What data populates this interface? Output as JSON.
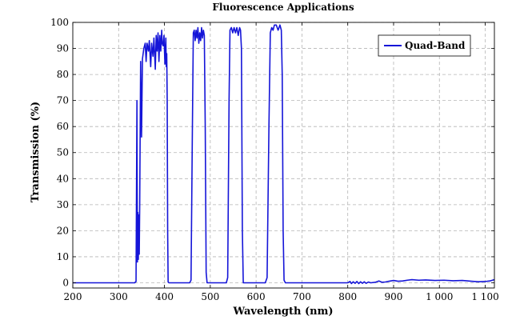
{
  "chart_data": {
    "type": "line",
    "title": "Fluorescence Applications",
    "xlabel": "Wavelength (nm)",
    "ylabel": "Transmission (%)",
    "xlim": [
      200,
      1120
    ],
    "ylim": [
      -2,
      100
    ],
    "x_ticks": [
      200,
      300,
      400,
      500,
      600,
      700,
      800,
      900,
      1000,
      1100
    ],
    "x_tick_labels": [
      "200",
      "300",
      "400",
      "500",
      "600",
      "700",
      "800",
      "900",
      "1 000",
      "1 100"
    ],
    "y_ticks": [
      0,
      10,
      20,
      30,
      40,
      50,
      60,
      70,
      80,
      90,
      100
    ],
    "y_tick_labels": [
      "0",
      "10",
      "20",
      "30",
      "40",
      "50",
      "60",
      "70",
      "80",
      "90",
      "100"
    ],
    "grid": true,
    "legend_position": "top-right",
    "series": [
      {
        "name": "Quad-Band",
        "color": "#1515d8",
        "points": [
          [
            200,
            0
          ],
          [
            300,
            0
          ],
          [
            335,
            0
          ],
          [
            338,
            0.5
          ],
          [
            340,
            70
          ],
          [
            341,
            8
          ],
          [
            342,
            27
          ],
          [
            343,
            9
          ],
          [
            344,
            26
          ],
          [
            345,
            11
          ],
          [
            346,
            30
          ],
          [
            348,
            85
          ],
          [
            350,
            56
          ],
          [
            352,
            86
          ],
          [
            355,
            90
          ],
          [
            358,
            92
          ],
          [
            360,
            85
          ],
          [
            362,
            92
          ],
          [
            365,
            89
          ],
          [
            367,
            93
          ],
          [
            370,
            83
          ],
          [
            372,
            92
          ],
          [
            375,
            87
          ],
          [
            377,
            94
          ],
          [
            380,
            82
          ],
          [
            382,
            95
          ],
          [
            384,
            89
          ],
          [
            386,
            96
          ],
          [
            388,
            85
          ],
          [
            390,
            95
          ],
          [
            392,
            89
          ],
          [
            394,
            97
          ],
          [
            395,
            92
          ],
          [
            397,
            91
          ],
          [
            399,
            95
          ],
          [
            401,
            84
          ],
          [
            403,
            94
          ],
          [
            404,
            83
          ],
          [
            405,
            88
          ],
          [
            406,
            70
          ],
          [
            407,
            20
          ],
          [
            408,
            0.3
          ],
          [
            410,
            0
          ],
          [
            455,
            0
          ],
          [
            458,
            1
          ],
          [
            461,
            60
          ],
          [
            463,
            96
          ],
          [
            465,
            97
          ],
          [
            467,
            93
          ],
          [
            469,
            97
          ],
          [
            471,
            94
          ],
          [
            473,
            98
          ],
          [
            475,
            92
          ],
          [
            477,
            96
          ],
          [
            479,
            93
          ],
          [
            481,
            98
          ],
          [
            483,
            94
          ],
          [
            485,
            97
          ],
          [
            487,
            95
          ],
          [
            489,
            60
          ],
          [
            491,
            4
          ],
          [
            493,
            0
          ],
          [
            535,
            0
          ],
          [
            538,
            2
          ],
          [
            541,
            70
          ],
          [
            543,
            97
          ],
          [
            546,
            98
          ],
          [
            549,
            96
          ],
          [
            552,
            98
          ],
          [
            555,
            96
          ],
          [
            558,
            98
          ],
          [
            561,
            95
          ],
          [
            564,
            98
          ],
          [
            566,
            97
          ],
          [
            568,
            90
          ],
          [
            570,
            20
          ],
          [
            572,
            0
          ],
          [
            620,
            0
          ],
          [
            624,
            2
          ],
          [
            628,
            60
          ],
          [
            631,
            96
          ],
          [
            634,
            98
          ],
          [
            637,
            97
          ],
          [
            640,
            99
          ],
          [
            644,
            99
          ],
          [
            648,
            97
          ],
          [
            652,
            99
          ],
          [
            655,
            97
          ],
          [
            657,
            80
          ],
          [
            659,
            20
          ],
          [
            661,
            1
          ],
          [
            664,
            0
          ],
          [
            800,
            0
          ],
          [
            805,
            0.5
          ],
          [
            808,
            -0.3
          ],
          [
            812,
            0.4
          ],
          [
            816,
            -0.2
          ],
          [
            820,
            0.5
          ],
          [
            824,
            -0.3
          ],
          [
            828,
            0.4
          ],
          [
            832,
            -0.2
          ],
          [
            836,
            0.4
          ],
          [
            840,
            -0.2
          ],
          [
            845,
            0.3
          ],
          [
            850,
            0
          ],
          [
            860,
            0.2
          ],
          [
            868,
            0.7
          ],
          [
            875,
            0.2
          ],
          [
            882,
            0.3
          ],
          [
            890,
            0.6
          ],
          [
            900,
            0.9
          ],
          [
            910,
            0.6
          ],
          [
            920,
            0.7
          ],
          [
            930,
            1
          ],
          [
            940,
            1.2
          ],
          [
            955,
            1
          ],
          [
            970,
            1.1
          ],
          [
            990,
            0.9
          ],
          [
            1010,
            1
          ],
          [
            1030,
            0.8
          ],
          [
            1050,
            0.9
          ],
          [
            1070,
            0.6
          ],
          [
            1085,
            0.4
          ],
          [
            1100,
            0.5
          ],
          [
            1110,
            0.7
          ],
          [
            1120,
            1.2
          ]
        ]
      }
    ]
  }
}
